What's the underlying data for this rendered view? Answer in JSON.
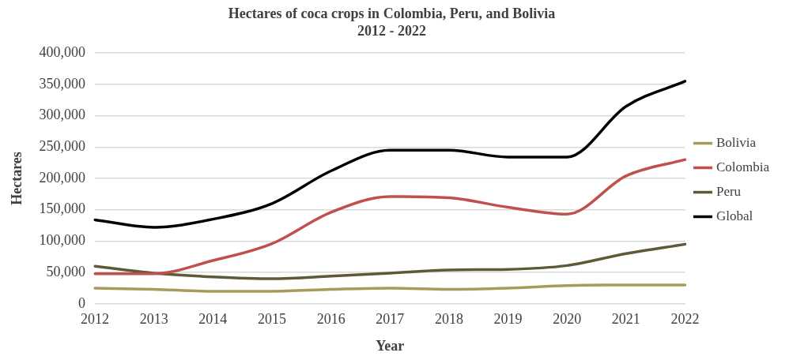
{
  "chart_data": {
    "type": "line",
    "title": "Hectares of coca crops in Colombia, Peru, and Bolivia",
    "subtitle": "2012 - 2022",
    "xlabel": "Year",
    "ylabel": "Hectares",
    "categories": [
      "2012",
      "2013",
      "2014",
      "2015",
      "2016",
      "2017",
      "2018",
      "2019",
      "2020",
      "2021",
      "2022"
    ],
    "series": [
      {
        "name": "Bolivia",
        "color": "#a89b5a",
        "values": [
          25000,
          23000,
          20000,
          20000,
          23000,
          25000,
          23000,
          25000,
          29000,
          30000,
          30000
        ]
      },
      {
        "name": "Colombia",
        "color": "#c0504d",
        "values": [
          48000,
          48000,
          69000,
          96000,
          146000,
          171000,
          169000,
          154000,
          143000,
          204000,
          230000
        ]
      },
      {
        "name": "Peru",
        "color": "#5e5a37",
        "values": [
          60000,
          49000,
          43000,
          40000,
          44000,
          49000,
          54000,
          55000,
          61000,
          80000,
          95000
        ]
      },
      {
        "name": "Global",
        "color": "#000000",
        "values": [
          134000,
          122000,
          135000,
          160000,
          212000,
          245000,
          245000,
          234000,
          234000,
          315000,
          355000
        ]
      }
    ],
    "ylim": [
      0,
      400000
    ],
    "yticks": [
      0,
      {
        "value": 50000,
        "label": "50,000"
      },
      {
        "value": 100000,
        "label": "100,000"
      },
      {
        "value": 150000,
        "label": "150,000"
      },
      {
        "value": 200000,
        "label": "200,000"
      },
      {
        "value": 250000,
        "label": "250,000"
      },
      {
        "value": 300000,
        "label": "300,000"
      },
      {
        "value": 350000,
        "label": "350,000"
      },
      {
        "value": 400000,
        "label": "400,000"
      }
    ],
    "grid": "y",
    "legend": "right",
    "marker": "none",
    "line_style": "solid"
  }
}
